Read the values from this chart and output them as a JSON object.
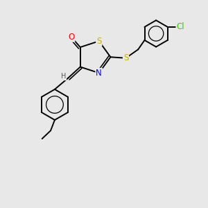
{
  "bg_color": "#e8e8e8",
  "atom_colors": {
    "S": "#c8b400",
    "O": "#ff0000",
    "N": "#0000ff",
    "C": "#000000",
    "H": "#555555",
    "Cl": "#33cc00"
  },
  "bond_color": "#000000",
  "font_size_atom": 8.5
}
